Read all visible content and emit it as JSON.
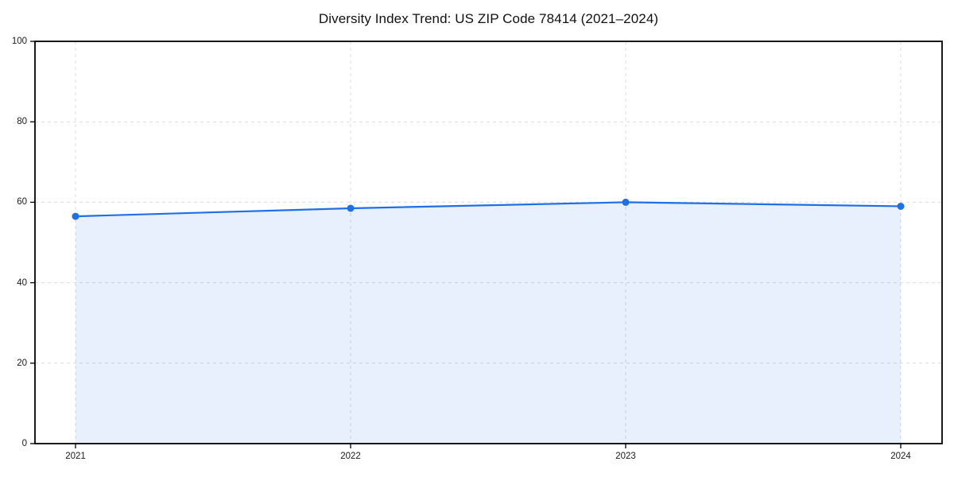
{
  "chart_data": {
    "type": "area",
    "title": "Diversity Index Trend: US ZIP Code 78414 (2021–2024)",
    "series": [
      {
        "name": "Diversity Index",
        "x": [
          2021,
          2022,
          2023,
          2024
        ],
        "values": [
          56.5,
          58.5,
          60.0,
          59.0
        ]
      }
    ],
    "categories": [
      "2021",
      "2022",
      "2023",
      "2024"
    ],
    "xticks": [
      "2021",
      "2022",
      "2023",
      "2024"
    ],
    "yticks": [
      0,
      20,
      40,
      60,
      80,
      100
    ],
    "ylim": [
      0,
      100
    ],
    "xlabel": "",
    "ylabel": "",
    "grid": true,
    "grid_style": "dashed",
    "legend": false,
    "colors": {
      "line": "#1e6fe8",
      "marker": "#1e6fe8",
      "fill": "rgba(30,111,232,0.10)",
      "grid": "#dcdcdc",
      "spine": "#000000",
      "text": "#1a1a1a",
      "background": "#ffffff"
    }
  }
}
